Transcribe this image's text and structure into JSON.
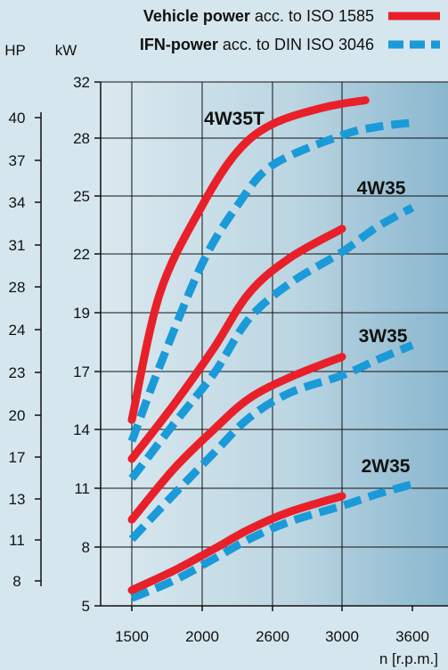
{
  "chart_data": {
    "type": "line",
    "xlabel": "n [r.p.m.]",
    "x_ticks": [
      1500,
      2000,
      2600,
      3000,
      3600
    ],
    "kw_label": "kW",
    "kw_ticks": [
      5,
      8,
      11,
      14,
      17,
      19,
      22,
      25,
      28,
      32
    ],
    "hp_label": "HP",
    "hp_ticks": [
      8,
      11,
      13,
      17,
      20,
      23,
      24,
      28,
      31,
      34,
      37,
      40
    ],
    "legend": [
      {
        "bold": "Vehicle power",
        "rest": " acc. to ISO 1585",
        "color": "#e8202a",
        "style": "solid"
      },
      {
        "bold": "IFN-power",
        "rest": " acc. to DIN ISO 3046",
        "color": "#1a9ad8",
        "style": "dashed"
      }
    ],
    "colors": {
      "vehicle": "#e8202a",
      "ifn": "#1a9ad8",
      "grid": "#111111"
    },
    "series": [
      {
        "name": "4W35T",
        "vehicle": [
          [
            1500,
            14.5
          ],
          [
            1700,
            20.0
          ],
          [
            2000,
            24.5
          ],
          [
            2300,
            27.3
          ],
          [
            2600,
            29.0
          ],
          [
            2900,
            30.2
          ],
          [
            3200,
            30.7
          ]
        ],
        "ifn": [
          [
            1500,
            13.4
          ],
          [
            1700,
            17.2
          ],
          [
            2000,
            21.5
          ],
          [
            2300,
            24.5
          ],
          [
            2600,
            26.6
          ],
          [
            3000,
            28.2
          ],
          [
            3300,
            28.8
          ],
          [
            3600,
            29.1
          ]
        ]
      },
      {
        "name": "4W35",
        "vehicle": [
          [
            1500,
            12.5
          ],
          [
            1800,
            15.3
          ],
          [
            2100,
            17.8
          ],
          [
            2400,
            20.0
          ],
          [
            2700,
            21.8
          ],
          [
            3000,
            23.3
          ]
        ],
        "ifn": [
          [
            1500,
            11.5
          ],
          [
            1800,
            14.3
          ],
          [
            2100,
            16.9
          ],
          [
            2400,
            18.8
          ],
          [
            2700,
            20.5
          ],
          [
            3000,
            22.1
          ],
          [
            3300,
            23.4
          ],
          [
            3600,
            24.4
          ]
        ]
      },
      {
        "name": "3W35",
        "vehicle": [
          [
            1500,
            9.4
          ],
          [
            1800,
            12.0
          ],
          [
            2100,
            14.0
          ],
          [
            2400,
            15.6
          ],
          [
            2700,
            16.7
          ],
          [
            3000,
            17.5
          ]
        ],
        "ifn": [
          [
            1500,
            8.4
          ],
          [
            1800,
            10.7
          ],
          [
            2100,
            12.8
          ],
          [
            2400,
            14.6
          ],
          [
            2700,
            15.9
          ],
          [
            3000,
            16.8
          ],
          [
            3300,
            17.4
          ],
          [
            3600,
            17.9
          ]
        ]
      },
      {
        "name": "2W35",
        "vehicle": [
          [
            1500,
            5.8
          ],
          [
            1800,
            6.8
          ],
          [
            2100,
            7.9
          ],
          [
            2400,
            8.9
          ],
          [
            2700,
            9.8
          ],
          [
            3000,
            10.6
          ]
        ],
        "ifn": [
          [
            1500,
            5.4
          ],
          [
            1800,
            6.3
          ],
          [
            2100,
            7.4
          ],
          [
            2400,
            8.4
          ],
          [
            2700,
            9.3
          ],
          [
            3000,
            10.1
          ],
          [
            3300,
            10.7
          ],
          [
            3600,
            11.2
          ]
        ]
      }
    ]
  }
}
